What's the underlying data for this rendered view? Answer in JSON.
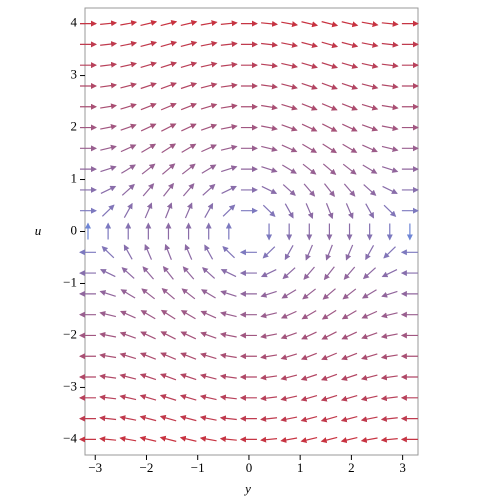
{
  "chart_data": {
    "type": "fieldplot",
    "xlabel": "y",
    "ylabel": "u",
    "field": {
      "dx": "u",
      "dy": "-Math.sin(y)"
    },
    "xgrid": [
      -3.14159,
      3.14159
    ],
    "ygrid": [
      -4,
      4
    ],
    "gridsize": [
      17,
      21
    ],
    "colors": [
      "#6f86d6",
      "#c8323f"
    ],
    "xlim": [
      -3.2,
      3.3
    ],
    "ylim": [
      -4.3,
      4.3
    ],
    "xticks": [
      {
        "value": -3,
        "label": "−3"
      },
      {
        "value": -2,
        "label": "−2"
      },
      {
        "value": -1,
        "label": "−1"
      },
      0,
      1,
      2,
      3
    ],
    "yticks": [
      {
        "value": -4,
        "label": "−4"
      },
      {
        "value": -3,
        "label": "−3"
      },
      {
        "value": -2,
        "label": "−2"
      },
      {
        "value": -1,
        "label": "−1"
      },
      0,
      1,
      2,
      3,
      4
    ]
  }
}
